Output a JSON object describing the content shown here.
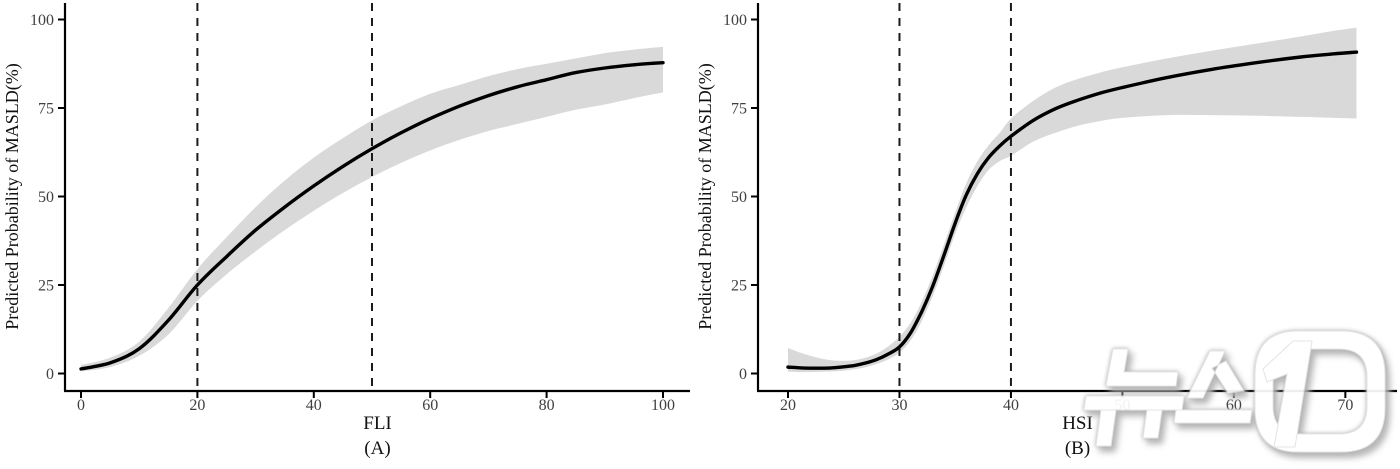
{
  "figure": {
    "background": "#ffffff",
    "y_axis_label": "Predicted Probability of MASLD(%)",
    "watermark_text": "뉴스1",
    "colors": {
      "curve": "#000000",
      "confidence_band": "#d9d9d9",
      "axis": "#000000",
      "dashed_reference": "#1a1a1a",
      "tick_text": "#404040",
      "watermark_fill": "#ffffff",
      "watermark_shadow": "#b5b5b5"
    }
  },
  "chart_data": [
    {
      "type": "line",
      "panel_label": "(A)",
      "xlabel": "FLI",
      "ylabel": "Predicted Probability of MASLD(%)",
      "x_ticks": [
        0,
        20,
        40,
        60,
        80,
        100
      ],
      "y_ticks": [
        0,
        25,
        50,
        75,
        100
      ],
      "xlim": [
        0,
        100
      ],
      "ylim": [
        0,
        100
      ],
      "grid": false,
      "legend": "none",
      "reference_lines_x": [
        20,
        50
      ],
      "series": [
        {
          "name": "predicted probability",
          "x": [
            0,
            5,
            10,
            15,
            20,
            25,
            30,
            35,
            40,
            45,
            50,
            55,
            60,
            65,
            70,
            75,
            80,
            85,
            90,
            95,
            100
          ],
          "y": [
            1.3,
            3,
            7,
            15,
            25,
            33,
            40.5,
            47,
            53,
            58.5,
            63.5,
            68,
            72,
            75.5,
            78.5,
            81,
            83,
            85,
            86.3,
            87.2,
            87.8
          ]
        }
      ],
      "confidence_band": {
        "x": [
          0,
          5,
          10,
          15,
          20,
          25,
          30,
          35,
          40,
          45,
          50,
          55,
          60,
          65,
          70,
          75,
          80,
          85,
          90,
          95,
          100
        ],
        "lower": [
          0.6,
          1.8,
          5,
          11,
          20.5,
          28,
          34.5,
          40.5,
          46,
          51,
          55.5,
          59.5,
          63,
          66,
          68.5,
          70.5,
          72.5,
          74.5,
          76,
          77.8,
          79.4
        ],
        "upper": [
          2.4,
          4.5,
          9,
          18.5,
          29.5,
          38.5,
          47,
          54.5,
          61,
          66.5,
          71.5,
          75.5,
          79,
          81.5,
          84,
          86,
          87.5,
          89,
          90.5,
          91.5,
          92.3
        ]
      }
    },
    {
      "type": "line",
      "panel_label": "(B)",
      "xlabel": "HSI",
      "ylabel": "Predicted Probability of MASLD(%)",
      "x_ticks": [
        20,
        30,
        40,
        50,
        60,
        70
      ],
      "y_ticks": [
        0,
        25,
        50,
        75,
        100
      ],
      "xlim": [
        20,
        71
      ],
      "ylim": [
        0,
        100
      ],
      "grid": false,
      "legend": "none",
      "reference_lines_x": [
        30,
        40
      ],
      "series": [
        {
          "name": "predicted probability",
          "x": [
            20,
            21,
            22,
            23,
            24,
            25,
            26,
            27,
            28,
            29,
            30,
            31,
            32,
            33,
            34,
            35,
            36,
            37,
            38,
            39,
            40,
            42,
            44,
            46,
            48,
            50,
            54,
            58,
            62,
            66,
            69,
            71
          ],
          "y": [
            1.8,
            1.6,
            1.5,
            1.5,
            1.6,
            1.9,
            2.3,
            3,
            4,
            5.5,
            7.5,
            11.5,
            17.5,
            24.8,
            33.5,
            42.5,
            50.5,
            56.5,
            61,
            64.3,
            67,
            71.5,
            74.8,
            77.2,
            79.2,
            80.8,
            83.6,
            85.9,
            87.8,
            89.4,
            90.3,
            90.8
          ]
        }
      ],
      "confidence_band": {
        "x": [
          20,
          21,
          22,
          23,
          24,
          25,
          26,
          27,
          28,
          29,
          30,
          31,
          32,
          33,
          34,
          35,
          36,
          37,
          38,
          39,
          40,
          42,
          44,
          46,
          48,
          50,
          54,
          58,
          62,
          66,
          69,
          71
        ],
        "lower": [
          0.5,
          0.4,
          0.4,
          0.5,
          0.6,
          0.8,
          1.2,
          1.8,
          2.7,
          4,
          5.9,
          9.3,
          14.8,
          22,
          30.5,
          39.5,
          47,
          53,
          57.5,
          60,
          61.5,
          65.5,
          68,
          70,
          71.3,
          72.2,
          73,
          73,
          72.8,
          72.5,
          72.2,
          72
        ],
        "upper": [
          7.2,
          6,
          5,
          4.2,
          3.7,
          3.6,
          3.8,
          4.5,
          5.7,
          7.7,
          10.4,
          14.3,
          20.3,
          27.8,
          36.5,
          45.5,
          53.8,
          60,
          64.5,
          68,
          72,
          77,
          80.8,
          83.2,
          85,
          86.5,
          89,
          91.2,
          93.2,
          95.2,
          96.8,
          97.7
        ]
      }
    }
  ]
}
